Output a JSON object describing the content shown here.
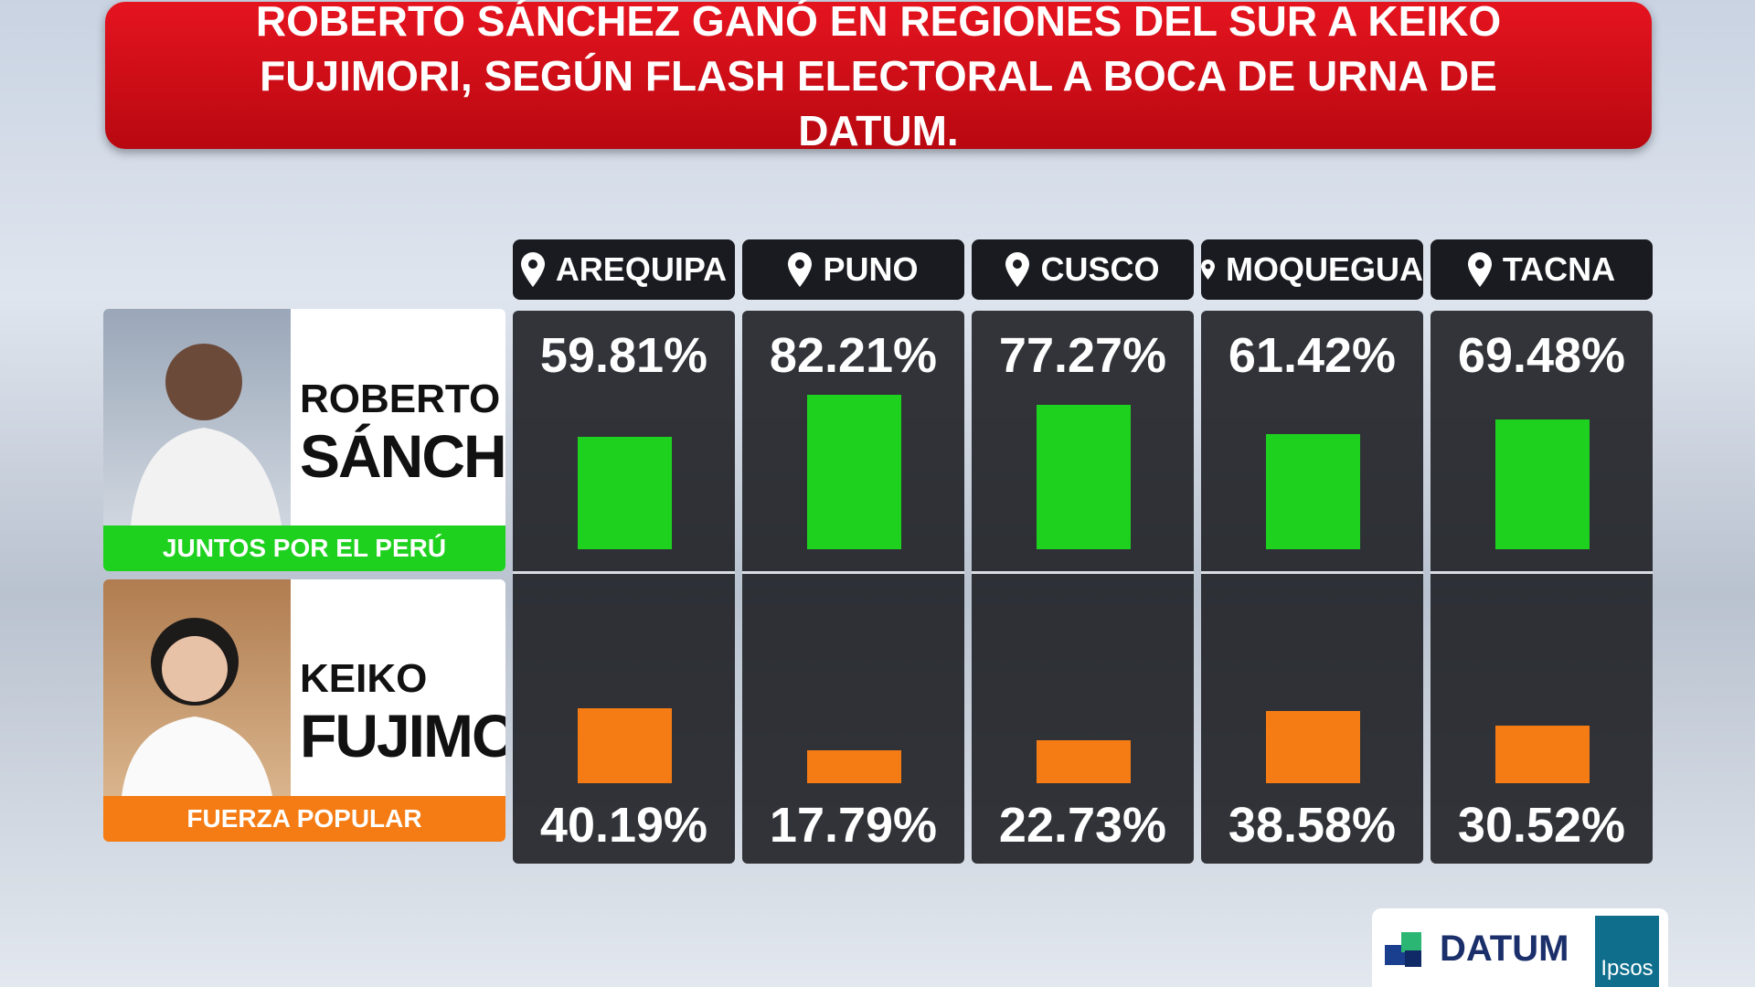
{
  "chart_data": {
    "type": "bar",
    "title": "ROBERTO SÁNCHEZ GANÓ EN REGIONES DEL SUR A KEIKO FUJIMORI, SEGÚN FLASH ELECTORAL A BOCA DE URNA DE DATUM.",
    "categories": [
      "AREQUIPA",
      "PUNO",
      "CUSCO",
      "MOQUEGUA",
      "TACNA"
    ],
    "series": [
      {
        "first_name": "ROBERTO",
        "last_name": "SÁNCHEZ",
        "party": "JUNTOS POR EL PERÚ",
        "color": "#1fd11f",
        "values": [
          59.81,
          82.21,
          77.27,
          61.42,
          69.48
        ],
        "value_labels": [
          "59.81%",
          "82.21%",
          "77.27%",
          "61.42%",
          "69.48%"
        ]
      },
      {
        "first_name": "KEIKO",
        "last_name": "FUJIMORI",
        "party": "FUERZA POPULAR",
        "color": "#f57c14",
        "values": [
          40.19,
          17.79,
          22.73,
          38.58,
          30.52
        ],
        "value_labels": [
          "40.19%",
          "17.79%",
          "22.73%",
          "38.58%",
          "30.52%"
        ]
      }
    ],
    "ylim": [
      0,
      100
    ]
  },
  "logos": [
    "DATUM",
    "Ipsos"
  ]
}
